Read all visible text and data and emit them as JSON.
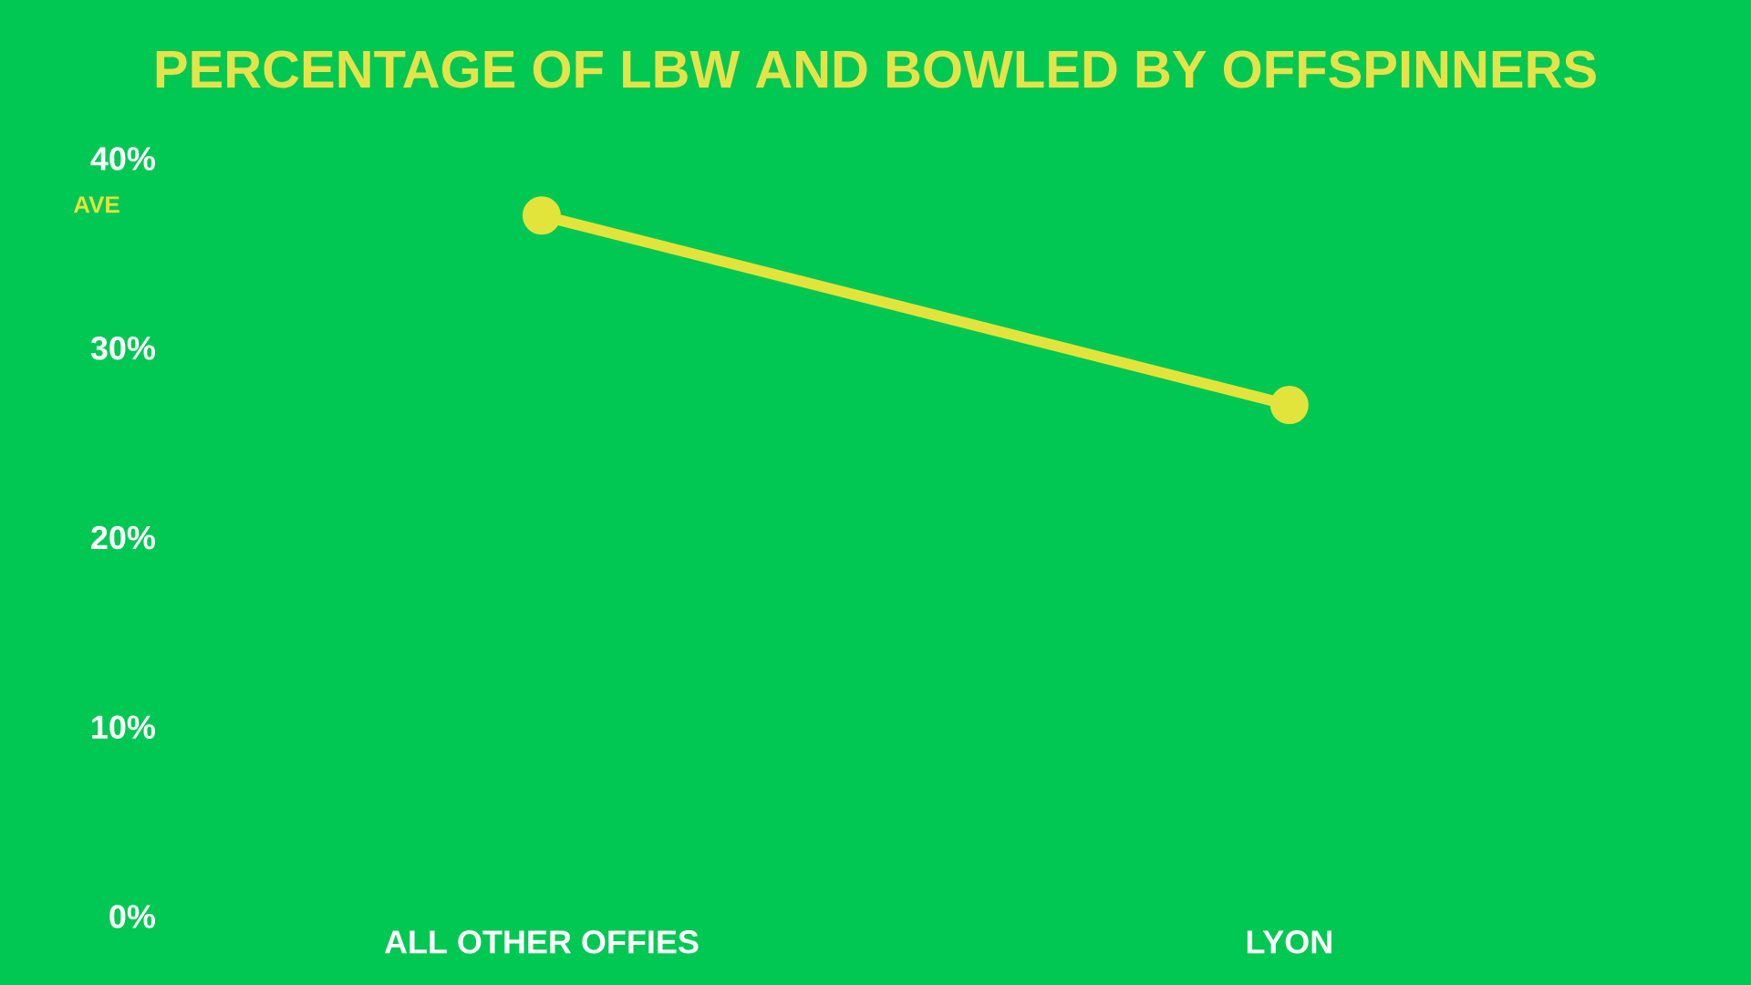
{
  "chart_data": {
    "type": "line",
    "title": "PERCENTAGE OF LBW AND BOWLED BY OFFSPINNERS",
    "categories": [
      "ALL OTHER OFFIES",
      "LYON"
    ],
    "series": [
      {
        "name": "AVE",
        "color": "#e2e43c",
        "values": [
          37,
          27
        ]
      }
    ],
    "ylim": [
      0,
      40
    ],
    "yticks": [
      {
        "value": 0,
        "label": "0%"
      },
      {
        "value": 10,
        "label": "10%"
      },
      {
        "value": 20,
        "label": "20%"
      },
      {
        "value": 30,
        "label": "30%"
      },
      {
        "value": 40,
        "label": "40%"
      }
    ],
    "marker": "circle"
  }
}
